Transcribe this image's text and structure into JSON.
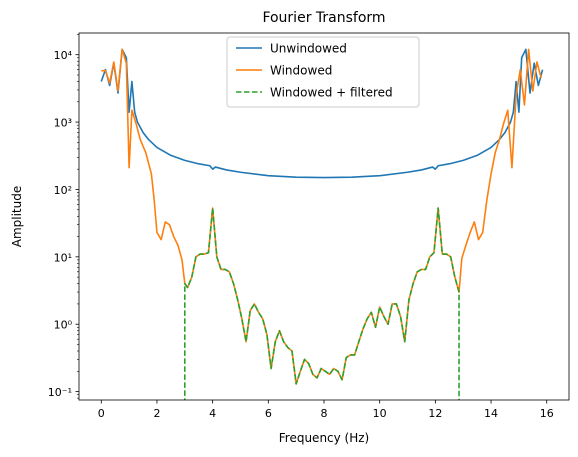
{
  "chart_data": {
    "type": "line",
    "title": "Fourier Transform",
    "xlabel": "Frequency (Hz)",
    "ylabel": "Amplitude",
    "xlim": [
      -0.8,
      16.8
    ],
    "ylim": [
      0.075,
      21000
    ],
    "yscale": "log",
    "grid": false,
    "legend_position": "top-center",
    "x_ticks": [
      0,
      2,
      4,
      6,
      8,
      10,
      12,
      14,
      16
    ],
    "x_tick_labels": [
      "0",
      "2",
      "4",
      "6",
      "8",
      "10",
      "12",
      "14",
      "16"
    ],
    "y_ticks": [
      0.1,
      1,
      10,
      100,
      1000,
      10000
    ],
    "y_tick_labels": [
      "10⁻¹",
      "10⁰",
      "10¹",
      "10²",
      "10³",
      "10⁴"
    ],
    "series": [
      {
        "name": "Unwindowed",
        "color": "#1f77b4",
        "style": "solid",
        "x": [
          0,
          0.15,
          0.3,
          0.45,
          0.6,
          0.75,
          0.9,
          1.0,
          1.1,
          1.2,
          1.3,
          1.5,
          1.7,
          2.0,
          2.5,
          3.0,
          3.5,
          3.9,
          4.0,
          4.1,
          4.5,
          5,
          6,
          7,
          8,
          9,
          10,
          11,
          11.5,
          11.9,
          12.0,
          12.1,
          12.5,
          13,
          13.5,
          14.0,
          14.3,
          14.5,
          14.7,
          14.8,
          14.9,
          15.0,
          15.1,
          15.25,
          15.4,
          15.55,
          15.7,
          15.85
        ],
        "y": [
          4000,
          6000,
          3500,
          7500,
          2700,
          12000,
          9000,
          1400,
          4000,
          1400,
          1000,
          700,
          550,
          420,
          320,
          270,
          240,
          225,
          200,
          215,
          195,
          180,
          160,
          152,
          150,
          152,
          160,
          180,
          195,
          215,
          200,
          225,
          240,
          270,
          320,
          420,
          550,
          700,
          1000,
          1400,
          4000,
          1400,
          9000,
          12000,
          2700,
          7500,
          3500,
          6000
        ]
      },
      {
        "name": "Windowed",
        "color": "#ff7f0e",
        "style": "solid",
        "x": [
          0,
          0.15,
          0.3,
          0.45,
          0.6,
          0.75,
          0.9,
          1.0,
          1.1,
          1.25,
          1.4,
          1.6,
          1.8,
          1.9,
          2.0,
          2.15,
          2.3,
          2.45,
          2.6,
          2.75,
          2.9,
          3.0,
          3.1,
          3.25,
          3.4,
          3.55,
          3.7,
          3.85,
          4.0,
          4.15,
          4.3,
          4.45,
          4.6,
          4.75,
          4.9,
          5.05,
          5.2,
          5.35,
          5.5,
          5.65,
          5.8,
          5.95,
          6.1,
          6.25,
          6.4,
          6.55,
          6.7,
          6.85,
          7.0,
          7.15,
          7.3,
          7.45,
          7.6,
          7.75,
          7.9,
          8.05,
          8.2,
          8.35,
          8.5,
          8.65,
          8.8,
          8.95,
          9.1,
          9.25,
          9.4,
          9.55,
          9.7,
          9.85,
          10.0,
          10.15,
          10.3,
          10.45,
          10.6,
          10.75,
          10.9,
          11.05,
          11.2,
          11.35,
          11.5,
          11.65,
          11.8,
          11.95,
          12.1,
          12.25,
          12.4,
          12.55,
          12.7,
          12.85,
          12.95,
          13.1,
          13.25,
          13.4,
          13.55,
          13.7,
          13.85,
          14.0,
          14.15,
          14.3,
          14.45,
          14.6,
          14.75,
          14.9,
          15.05,
          15.2,
          15.35,
          15.5,
          15.65,
          15.8
        ],
        "y": [
          5800,
          5800,
          3800,
          7800,
          2900,
          12000,
          7500,
          210,
          1500,
          950,
          550,
          350,
          170,
          70,
          23,
          18,
          33,
          30,
          20,
          15,
          9,
          4,
          3.5,
          5,
          10,
          11,
          11,
          11.5,
          53,
          10,
          6.5,
          6.5,
          6,
          4,
          2.3,
          1.2,
          0.55,
          1.6,
          2.0,
          1.5,
          1.2,
          0.7,
          0.22,
          0.55,
          0.8,
          0.55,
          0.45,
          0.4,
          0.13,
          0.2,
          0.3,
          0.26,
          0.18,
          0.16,
          0.22,
          0.2,
          0.18,
          0.22,
          0.2,
          0.15,
          0.32,
          0.35,
          0.35,
          0.55,
          0.85,
          1.2,
          1.5,
          0.9,
          1.8,
          1.3,
          1.0,
          2.0,
          2.0,
          1.3,
          0.55,
          2.3,
          4.0,
          6.0,
          6.5,
          6.5,
          10,
          11.5,
          53,
          11,
          11,
          10,
          5,
          3.0,
          9.5,
          15,
          23,
          33,
          18,
          23,
          70,
          170,
          350,
          550,
          950,
          1500,
          210,
          2500,
          6000,
          1800,
          12000,
          2900,
          7800,
          4500
        ]
      },
      {
        "name": "Windowed + filtered",
        "color": "#2ca02c",
        "style": "dashed",
        "x": [
          3.0,
          3.0,
          3.1,
          3.25,
          3.4,
          3.55,
          3.7,
          3.85,
          4.0,
          4.15,
          4.3,
          4.45,
          4.6,
          4.75,
          4.9,
          5.05,
          5.2,
          5.35,
          5.5,
          5.65,
          5.8,
          5.95,
          6.1,
          6.25,
          6.4,
          6.55,
          6.7,
          6.85,
          7.0,
          7.15,
          7.3,
          7.45,
          7.6,
          7.75,
          7.9,
          8.05,
          8.2,
          8.35,
          8.5,
          8.65,
          8.8,
          8.95,
          9.1,
          9.25,
          9.4,
          9.55,
          9.7,
          9.85,
          10.0,
          10.15,
          10.3,
          10.45,
          10.6,
          10.75,
          10.9,
          11.05,
          11.2,
          11.35,
          11.5,
          11.65,
          11.8,
          11.95,
          12.1,
          12.25,
          12.4,
          12.55,
          12.7,
          12.85,
          12.85
        ],
        "y": [
          0.05,
          4,
          3.5,
          5,
          10,
          11,
          11,
          11.5,
          53,
          10,
          6.5,
          6.5,
          6,
          4,
          2.3,
          1.2,
          0.55,
          1.6,
          2.0,
          1.5,
          1.2,
          0.7,
          0.22,
          0.55,
          0.8,
          0.55,
          0.45,
          0.4,
          0.13,
          0.2,
          0.3,
          0.26,
          0.18,
          0.16,
          0.22,
          0.2,
          0.18,
          0.22,
          0.2,
          0.15,
          0.32,
          0.35,
          0.35,
          0.55,
          0.85,
          1.2,
          1.5,
          0.9,
          1.8,
          1.3,
          1.0,
          2.0,
          2.0,
          1.3,
          0.55,
          2.3,
          4.0,
          6.0,
          6.5,
          6.5,
          10,
          11.5,
          53,
          11,
          11,
          10,
          5,
          3.0,
          0.05
        ]
      }
    ]
  }
}
